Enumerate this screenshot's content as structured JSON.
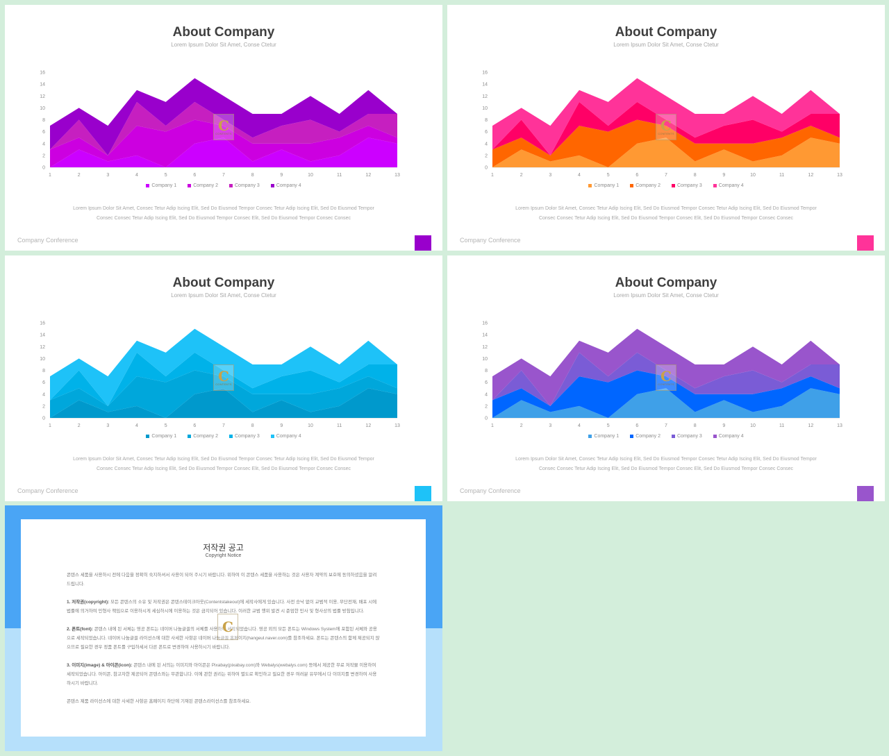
{
  "slides": [
    {
      "title": "About Company",
      "subtitle": "Lorem Ipsum Dolor Sit Amet, Conse Ctetur",
      "body_line1": "Lorem Ipsum Dolor Sit Amet, Consec Tetur Adip Iscing Elit, Sed Do Eiusmod Tempor Consec Tetur Adip Iscing Elit, Sed Do Eiusmod Tempor",
      "body_line2": "Consec Consec Tetur Adip Iscing Elit, Sed Do Eiusmod Tempor Consec Elit, Sed Do Eiusmod Tempor Consec Consec",
      "footer": "Company Conference",
      "accent": "#9900cc",
      "colors": [
        "#cc00ff",
        "#cc00e0",
        "#c61fc0",
        "#9900cc"
      ]
    },
    {
      "title": "About Company",
      "subtitle": "Lorem Ipsum Dolor Sit Amet, Conse Ctetur",
      "body_line1": "Lorem Ipsum Dolor Sit Amet, Consec Tetur Adip Iscing Elit, Sed Do Eiusmod Tempor Consec Tetur Adip Iscing Elit, Sed Do Eiusmod Tempor",
      "body_line2": "Consec Consec Tetur Adip Iscing Elit, Sed Do Eiusmod Tempor Consec Elit, Sed Do Eiusmod Tempor Consec Consec",
      "footer": "Company Conference",
      "accent": "#ff3399",
      "colors": [
        "#ff9933",
        "#ff6600",
        "#ff0066",
        "#ff3399"
      ]
    },
    {
      "title": "About Company",
      "subtitle": "Lorem Ipsum Dolor Sit Amet, Conse Ctetur",
      "body_line1": "Lorem Ipsum Dolor Sit Amet, Consec Tetur Adip Iscing Elit, Sed Do Eiusmod Tempor Consec Tetur Adip Iscing Elit, Sed Do Eiusmod Tempor",
      "body_line2": "Consec Consec Tetur Adip Iscing Elit, Sed Do Eiusmod Tempor Consec Elit, Sed Do Eiusmod Tempor Consec Consec",
      "footer": "Company Conference",
      "accent": "#1ec2f8",
      "colors": [
        "#0099cc",
        "#00a7db",
        "#00b2e9",
        "#1ec2f8"
      ]
    },
    {
      "title": "About Company",
      "subtitle": "Lorem Ipsum Dolor Sit Amet, Conse Ctetur",
      "body_line1": "Lorem Ipsum Dolor Sit Amet, Consec Tetur Adip Iscing Elit, Sed Do Eiusmod Tempor Consec Tetur Adip Iscing Elit, Sed Do Eiusmod Tempor",
      "body_line2": "Consec Consec Tetur Adip Iscing Elit, Sed Do Eiusmod Tempor Consec Elit, Sed Do Eiusmod Tempor Consec Consec",
      "footer": "Company Conference",
      "accent": "#9955cc",
      "colors": [
        "#3fa0e8",
        "#0066ff",
        "#7a5cd6",
        "#9955cc"
      ]
    }
  ],
  "watermark": {
    "letter": "C",
    "text": "CONTENTS"
  },
  "chart_data": {
    "type": "area",
    "stacked": true,
    "x": [
      1,
      2,
      3,
      4,
      5,
      6,
      7,
      8,
      9,
      10,
      11,
      12,
      13
    ],
    "ylim": [
      0,
      16
    ],
    "yticks": [
      0,
      2,
      4,
      6,
      8,
      10,
      12,
      14,
      16
    ],
    "series": [
      {
        "name": "Company 1",
        "values": [
          0,
          3,
          1,
          2,
          0,
          4,
          5,
          1,
          3,
          1,
          2,
          5,
          4
        ]
      },
      {
        "name": "Company 2",
        "values": [
          3,
          2,
          1,
          5,
          6,
          4,
          2,
          3,
          1,
          3,
          3,
          2,
          1
        ]
      },
      {
        "name": "Company 3",
        "values": [
          0,
          3,
          0,
          4,
          1,
          3,
          1,
          1,
          3,
          4,
          1,
          2,
          4
        ]
      },
      {
        "name": "Company 4",
        "values": [
          4,
          2,
          5,
          2,
          4,
          4,
          4,
          4,
          2,
          4,
          3,
          4,
          0
        ]
      }
    ]
  },
  "notice": {
    "title": "저작권 공고",
    "subtitle": "Copyright Notice",
    "p1": "콘텐스 세품을 사용하시 전에 다음을 정확히 숙지하셔서 사용이 되어 주시기 바랍니다. 위하여 이 콘텐스 세품을 사용하는 것은 사용자 계약의 보호에 동의하셨음을 알려드립니다.",
    "p2_label": "1. 저작권(copyright):",
    "p2": " 모든 콘텐스의 소유 및 저작권은 콘텐스테이크아웃(Contentstakeout)에 세작사에게 있습니다. 사전 승낙 없이 교범적 이용, 무단전재, 배포 시에 법률에 의거하여 민형사 책임으로 이용하시게 세심하시에 이용하는 것은 금지되어 있습니다. 이러한 교범 행위 발견 시 준엄한 민사 및 형사상의 법률 방침입니다.",
    "p3_label": "2. 폰트(font):",
    "p3": " 콘텐스 내에 된 서체는 영공 폰트는 네이버 나눔글꼴의 서체를 사용하여 세작되었습니다. 영공 외의 모든 폰트는 Windows System에 포함된 서체와 공용으로 세작되었습니다. 네이버 나눔글꼴 라이선스에 대한 사세한 사항은 네이버 나눔글꼴 홈페이지(hangeul.naver.com)를 참조하세요. 폰트는 콘텐스의 함께 제공되지 않으므로 필요한 경우 정품 폰트를 구입하세서 다른 폰트로 변경하여 사용하시기 바랍니다.",
    "p4_label": "3. 이미지(image) & 아이콘(icon):",
    "p4": " 콘텐스 내에 된 서의는 이미지와 아이콘은 Pixabay(pixabay.com)와 Webalys(webalys.com) 등에서 제공한 무료 저작물 이용하여 세작되었습니다. 아이콘, 참고자한 제공되어 콘텐스와는 무관합니다. 이에 관한 권리는 위하여 별도로 확인하고 필요한 경우 여러분 유무에서 다 이미지를 변경하여 사용하시기 바랍니다.",
    "p5": "콘텐스 제품 라이선스에 대한 사세한 사항은 홈페이지 하단에 기재된 콘텐스라이선스를 참조하세요."
  }
}
